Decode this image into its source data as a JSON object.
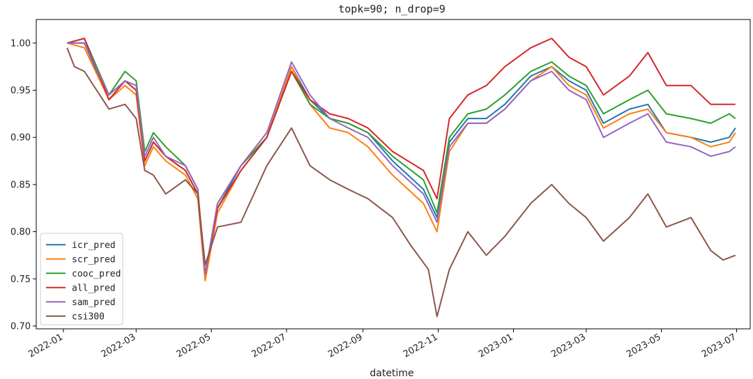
{
  "chart_data": {
    "type": "line",
    "title": "topk=90; n_drop=9",
    "xlabel": "datetime",
    "ylabel": "",
    "x_ticks": [
      "2022-01",
      "2022-03",
      "2022-05",
      "2022-07",
      "2022-09",
      "2022-11",
      "2023-01",
      "2023-03",
      "2023-05",
      "2023-07"
    ],
    "y_ticks": [
      "0.70",
      "0.75",
      "0.80",
      "0.85",
      "0.90",
      "0.95",
      "1.00"
    ],
    "ylim": [
      0.697,
      1.025
    ],
    "xlim": [
      "2021-12-10",
      "2023-07-12"
    ],
    "grid": false,
    "legend": "lower-left",
    "series": [
      {
        "name": "icr_pred",
        "color": "#1f77b4",
        "x": [
          "2022-01-04",
          "2022-01-18",
          "2022-02-07",
          "2022-02-20",
          "2022-03-01",
          "2022-03-08",
          "2022-03-15",
          "2022-03-25",
          "2022-04-10",
          "2022-04-20",
          "2022-04-26",
          "2022-05-06",
          "2022-05-25",
          "2022-06-15",
          "2022-07-05",
          "2022-07-20",
          "2022-08-05",
          "2022-08-20",
          "2022-09-05",
          "2022-09-25",
          "2022-10-20",
          "2022-10-31",
          "2022-11-10",
          "2022-11-25",
          "2022-12-10",
          "2022-12-25",
          "2023-01-15",
          "2023-02-01",
          "2023-02-15",
          "2023-03-01",
          "2023-03-15",
          "2023-04-05",
          "2023-04-20",
          "2023-05-05",
          "2023-05-25",
          "2023-06-10",
          "2023-06-25",
          "2023-06-30"
        ],
        "y": [
          1.0,
          1.0,
          0.94,
          0.96,
          0.95,
          0.875,
          0.895,
          0.88,
          0.865,
          0.84,
          0.755,
          0.825,
          0.87,
          0.9,
          0.975,
          0.94,
          0.92,
          0.915,
          0.905,
          0.875,
          0.845,
          0.815,
          0.895,
          0.92,
          0.92,
          0.935,
          0.965,
          0.975,
          0.96,
          0.95,
          0.915,
          0.93,
          0.935,
          0.905,
          0.9,
          0.895,
          0.9,
          0.91
        ]
      },
      {
        "name": "scr_pred",
        "color": "#ff7f0e",
        "x": [
          "2022-01-04",
          "2022-01-18",
          "2022-02-07",
          "2022-02-20",
          "2022-03-01",
          "2022-03-08",
          "2022-03-15",
          "2022-03-25",
          "2022-04-10",
          "2022-04-20",
          "2022-04-26",
          "2022-05-06",
          "2022-05-25",
          "2022-06-15",
          "2022-07-05",
          "2022-07-20",
          "2022-08-05",
          "2022-08-20",
          "2022-09-05",
          "2022-09-25",
          "2022-10-20",
          "2022-10-31",
          "2022-11-10",
          "2022-11-25",
          "2022-12-10",
          "2022-12-25",
          "2023-01-15",
          "2023-02-01",
          "2023-02-15",
          "2023-03-01",
          "2023-03-15",
          "2023-04-05",
          "2023-04-20",
          "2023-05-05",
          "2023-05-25",
          "2023-06-10",
          "2023-06-25",
          "2023-06-30"
        ],
        "y": [
          1.0,
          0.995,
          0.94,
          0.955,
          0.945,
          0.87,
          0.89,
          0.875,
          0.86,
          0.835,
          0.748,
          0.82,
          0.865,
          0.9,
          0.975,
          0.935,
          0.91,
          0.905,
          0.89,
          0.86,
          0.83,
          0.8,
          0.885,
          0.915,
          0.915,
          0.93,
          0.96,
          0.975,
          0.955,
          0.945,
          0.91,
          0.925,
          0.93,
          0.905,
          0.9,
          0.89,
          0.895,
          0.905
        ]
      },
      {
        "name": "cooc_pred",
        "color": "#2ca02c",
        "x": [
          "2022-01-04",
          "2022-01-18",
          "2022-02-07",
          "2022-02-20",
          "2022-03-01",
          "2022-03-08",
          "2022-03-15",
          "2022-03-25",
          "2022-04-10",
          "2022-04-20",
          "2022-04-26",
          "2022-05-06",
          "2022-05-25",
          "2022-06-15",
          "2022-07-05",
          "2022-07-20",
          "2022-08-05",
          "2022-08-20",
          "2022-09-05",
          "2022-09-25",
          "2022-10-20",
          "2022-10-31",
          "2022-11-10",
          "2022-11-25",
          "2022-12-10",
          "2022-12-25",
          "2023-01-15",
          "2023-02-01",
          "2023-02-15",
          "2023-03-01",
          "2023-03-15",
          "2023-04-05",
          "2023-04-20",
          "2023-05-05",
          "2023-05-25",
          "2023-06-10",
          "2023-06-25",
          "2023-06-30"
        ],
        "y": [
          1.0,
          1.005,
          0.945,
          0.97,
          0.96,
          0.885,
          0.905,
          0.89,
          0.87,
          0.845,
          0.755,
          0.83,
          0.87,
          0.9,
          0.97,
          0.935,
          0.92,
          0.915,
          0.905,
          0.88,
          0.855,
          0.82,
          0.9,
          0.925,
          0.93,
          0.945,
          0.97,
          0.98,
          0.965,
          0.955,
          0.925,
          0.94,
          0.95,
          0.925,
          0.92,
          0.915,
          0.925,
          0.92
        ]
      },
      {
        "name": "all_pred",
        "color": "#d62728",
        "x": [
          "2022-01-04",
          "2022-01-18",
          "2022-02-07",
          "2022-02-20",
          "2022-03-01",
          "2022-03-08",
          "2022-03-15",
          "2022-03-25",
          "2022-04-10",
          "2022-04-20",
          "2022-04-26",
          "2022-05-06",
          "2022-05-25",
          "2022-06-15",
          "2022-07-05",
          "2022-07-20",
          "2022-08-05",
          "2022-08-20",
          "2022-09-05",
          "2022-09-25",
          "2022-10-20",
          "2022-10-31",
          "2022-11-10",
          "2022-11-25",
          "2022-12-10",
          "2022-12-25",
          "2023-01-15",
          "2023-02-01",
          "2023-02-15",
          "2023-03-01",
          "2023-03-15",
          "2023-04-05",
          "2023-04-20",
          "2023-05-05",
          "2023-05-25",
          "2023-06-10",
          "2023-06-25",
          "2023-06-30"
        ],
        "y": [
          1.0,
          1.005,
          0.94,
          0.96,
          0.95,
          0.875,
          0.895,
          0.88,
          0.865,
          0.84,
          0.755,
          0.825,
          0.865,
          0.9,
          0.97,
          0.94,
          0.925,
          0.92,
          0.91,
          0.885,
          0.865,
          0.835,
          0.92,
          0.945,
          0.955,
          0.975,
          0.995,
          1.005,
          0.985,
          0.975,
          0.945,
          0.965,
          0.99,
          0.955,
          0.955,
          0.935,
          0.935,
          0.935
        ]
      },
      {
        "name": "sam_pred",
        "color": "#9467bd",
        "x": [
          "2022-01-04",
          "2022-01-18",
          "2022-02-07",
          "2022-02-20",
          "2022-03-01",
          "2022-03-08",
          "2022-03-15",
          "2022-03-25",
          "2022-04-10",
          "2022-04-20",
          "2022-04-26",
          "2022-05-06",
          "2022-05-25",
          "2022-06-15",
          "2022-07-05",
          "2022-07-20",
          "2022-08-05",
          "2022-08-20",
          "2022-09-05",
          "2022-09-25",
          "2022-10-20",
          "2022-10-31",
          "2022-11-10",
          "2022-11-25",
          "2022-12-10",
          "2022-12-25",
          "2023-01-15",
          "2023-02-01",
          "2023-02-15",
          "2023-03-01",
          "2023-03-15",
          "2023-04-05",
          "2023-04-20",
          "2023-05-05",
          "2023-05-25",
          "2023-06-10",
          "2023-06-25",
          "2023-06-30"
        ],
        "y": [
          1.0,
          1.0,
          0.945,
          0.96,
          0.955,
          0.88,
          0.9,
          0.88,
          0.87,
          0.845,
          0.755,
          0.83,
          0.87,
          0.905,
          0.98,
          0.945,
          0.92,
          0.91,
          0.9,
          0.87,
          0.84,
          0.81,
          0.89,
          0.915,
          0.915,
          0.93,
          0.96,
          0.97,
          0.95,
          0.94,
          0.9,
          0.915,
          0.925,
          0.895,
          0.89,
          0.88,
          0.885,
          0.89
        ]
      },
      {
        "name": "csi300",
        "color": "#8c564b",
        "x": [
          "2022-01-04",
          "2022-01-10",
          "2022-01-18",
          "2022-02-07",
          "2022-02-20",
          "2022-03-01",
          "2022-03-08",
          "2022-03-15",
          "2022-03-25",
          "2022-04-10",
          "2022-04-20",
          "2022-04-26",
          "2022-05-06",
          "2022-05-25",
          "2022-06-15",
          "2022-07-05",
          "2022-07-20",
          "2022-08-05",
          "2022-08-20",
          "2022-09-05",
          "2022-09-25",
          "2022-10-10",
          "2022-10-24",
          "2022-10-31",
          "2022-11-10",
          "2022-11-25",
          "2022-12-10",
          "2022-12-25",
          "2023-01-15",
          "2023-02-01",
          "2023-02-15",
          "2023-03-01",
          "2023-03-15",
          "2023-04-05",
          "2023-04-20",
          "2023-05-05",
          "2023-05-25",
          "2023-06-10",
          "2023-06-20",
          "2023-06-30"
        ],
        "y": [
          0.995,
          0.975,
          0.97,
          0.93,
          0.935,
          0.92,
          0.865,
          0.86,
          0.84,
          0.855,
          0.84,
          0.765,
          0.805,
          0.81,
          0.87,
          0.91,
          0.87,
          0.855,
          0.845,
          0.835,
          0.815,
          0.785,
          0.76,
          0.71,
          0.76,
          0.8,
          0.775,
          0.795,
          0.83,
          0.85,
          0.83,
          0.815,
          0.79,
          0.815,
          0.84,
          0.805,
          0.815,
          0.78,
          0.77,
          0.775
        ]
      }
    ]
  }
}
